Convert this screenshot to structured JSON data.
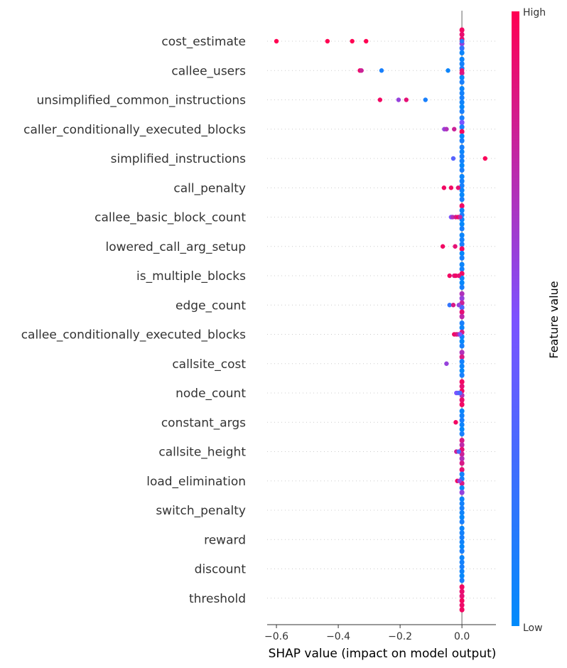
{
  "chart_data": {
    "type": "scatter",
    "subtype": "shap-beeswarm",
    "title": "",
    "xlabel": "SHAP value (impact on model output)",
    "xlim": [
      -0.63,
      0.11
    ],
    "xticks": [
      -0.6,
      -0.4,
      -0.2,
      0.0
    ],
    "xtick_labels": [
      "−0.6",
      "−0.4",
      "−0.2",
      "0.0"
    ],
    "colorbar": {
      "label": "Feature value",
      "high": "High",
      "low": "Low",
      "high_color": "#ff0052",
      "low_color": "#008bfb"
    },
    "features": [
      {
        "name": "cost_estimate",
        "dense": [
          [
            0,
            0.95
          ],
          [
            0,
            0.92
          ],
          [
            0,
            0.9
          ],
          [
            0,
            0.6
          ],
          [
            0,
            0.2
          ],
          [
            0,
            0.05
          ]
        ],
        "points": [
          [
            -0.6,
            1.0
          ],
          [
            -0.435,
            1.0
          ],
          [
            -0.355,
            1.0
          ],
          [
            -0.31,
            1.0
          ],
          [
            0,
            0.98
          ],
          [
            0,
            0.15
          ]
        ]
      },
      {
        "name": "callee_users",
        "dense": [
          [
            0,
            0.05
          ],
          [
            0,
            0.08
          ],
          [
            0,
            0.1
          ],
          [
            0,
            0.85
          ],
          [
            0,
            0.03
          ],
          [
            0,
            0.1
          ]
        ],
        "points": [
          [
            -0.33,
            0.95
          ],
          [
            -0.325,
            0.8
          ],
          [
            -0.26,
            0.1
          ],
          [
            -0.045,
            0.05
          ],
          [
            0,
            0.9
          ]
        ]
      },
      {
        "name": "unsimplified_common_instructions",
        "dense": [
          [
            0,
            0.05
          ],
          [
            0,
            0.08
          ],
          [
            0,
            0.1
          ],
          [
            0,
            0.06
          ],
          [
            0,
            0.03
          ],
          [
            0,
            0.1
          ]
        ],
        "points": [
          [
            -0.265,
            0.95
          ],
          [
            -0.205,
            0.6
          ],
          [
            -0.18,
            0.9
          ],
          [
            -0.118,
            0.1
          ]
        ]
      },
      {
        "name": "caller_conditionally_executed_blocks",
        "dense": [
          [
            0,
            0.1
          ],
          [
            0,
            0.5
          ],
          [
            0,
            0.1
          ],
          [
            0,
            0.95
          ],
          [
            0,
            0.03
          ],
          [
            0,
            0.1
          ]
        ],
        "points": [
          [
            -0.057,
            0.6
          ],
          [
            -0.05,
            0.7
          ],
          [
            -0.025,
            0.8
          ]
        ]
      },
      {
        "name": "simplified_instructions",
        "dense": [
          [
            0,
            0.1
          ],
          [
            0,
            0.05
          ],
          [
            0,
            0.1
          ],
          [
            0,
            0.08
          ],
          [
            0,
            0.03
          ],
          [
            0,
            0.1
          ]
        ],
        "points": [
          [
            -0.028,
            0.35
          ],
          [
            0.075,
            0.98
          ]
        ]
      },
      {
        "name": "call_penalty",
        "dense": [
          [
            0,
            0.05
          ],
          [
            0,
            0.08
          ],
          [
            0,
            0.1
          ],
          [
            0,
            0.06
          ],
          [
            0,
            0.03
          ],
          [
            0,
            0.1
          ]
        ],
        "points": [
          [
            -0.058,
            0.95
          ],
          [
            -0.035,
            0.95
          ],
          [
            -0.012,
            0.9
          ]
        ]
      },
      {
        "name": "callee_basic_block_count",
        "dense": [
          [
            0,
            0.95
          ],
          [
            0,
            0.05
          ],
          [
            0,
            0.1
          ],
          [
            0,
            0.06
          ],
          [
            0,
            0.03
          ],
          [
            0,
            0.1
          ]
        ],
        "points": [
          [
            -0.035,
            0.5
          ],
          [
            -0.03,
            0.7
          ],
          [
            -0.02,
            0.85
          ],
          [
            -0.012,
            0.95
          ],
          [
            -0.006,
            0.75
          ]
        ]
      },
      {
        "name": "lowered_call_arg_setup",
        "dense": [
          [
            0,
            0.05
          ],
          [
            0,
            0.08
          ],
          [
            0,
            0.1
          ],
          [
            0,
            0.95
          ],
          [
            0,
            0.03
          ],
          [
            0,
            0.1
          ]
        ],
        "points": [
          [
            -0.062,
            0.95
          ],
          [
            -0.022,
            0.9
          ]
        ]
      },
      {
        "name": "is_multiple_blocks",
        "dense": [
          [
            0,
            0.05
          ],
          [
            0,
            0.08
          ],
          [
            0,
            0.95
          ],
          [
            0,
            0.06
          ],
          [
            0,
            0.03
          ],
          [
            0,
            0.1
          ]
        ],
        "points": [
          [
            -0.04,
            0.95
          ],
          [
            -0.025,
            0.85
          ],
          [
            -0.02,
            0.95
          ],
          [
            -0.01,
            0.9
          ]
        ]
      },
      {
        "name": "edge_count",
        "dense": [
          [
            0,
            0.7
          ],
          [
            0,
            0.6
          ],
          [
            0,
            0.8
          ],
          [
            0,
            0.3
          ],
          [
            0,
            0.9
          ],
          [
            0,
            0.75
          ]
        ],
        "points": [
          [
            -0.04,
            0.2
          ],
          [
            -0.028,
            0.85
          ],
          [
            -0.01,
            0.6
          ]
        ]
      },
      {
        "name": "callee_conditionally_executed_blocks",
        "dense": [
          [
            0,
            0.1
          ],
          [
            0,
            0.05
          ],
          [
            0,
            0.85
          ],
          [
            0,
            0.06
          ],
          [
            0,
            0.03
          ],
          [
            0,
            0.1
          ]
        ],
        "points": [
          [
            -0.025,
            0.95
          ],
          [
            -0.018,
            0.9
          ],
          [
            -0.012,
            0.8
          ],
          [
            -0.006,
            0.5
          ]
        ]
      },
      {
        "name": "callsite_cost",
        "dense": [
          [
            0,
            0.7
          ],
          [
            0,
            0.85
          ],
          [
            0,
            0.08
          ],
          [
            0,
            0.06
          ],
          [
            0,
            0.03
          ],
          [
            0,
            0.1
          ]
        ],
        "points": [
          [
            -0.05,
            0.6
          ]
        ]
      },
      {
        "name": "node_count",
        "dense": [
          [
            0,
            0.95
          ],
          [
            0,
            0.9
          ],
          [
            0,
            0.95
          ],
          [
            0,
            0.7
          ],
          [
            0,
            0.92
          ],
          [
            0,
            0.95
          ]
        ],
        "points": [
          [
            -0.018,
            0.5
          ],
          [
            -0.012,
            0.4
          ],
          [
            -0.006,
            0.3
          ]
        ]
      },
      {
        "name": "constant_args",
        "dense": [
          [
            0,
            0.05
          ],
          [
            0,
            0.08
          ],
          [
            0,
            0.1
          ],
          [
            0,
            0.06
          ],
          [
            0,
            0.03
          ],
          [
            0,
            0.1
          ]
        ],
        "points": [
          [
            -0.02,
            0.95
          ]
        ]
      },
      {
        "name": "callsite_height",
        "dense": [
          [
            0,
            0.85
          ],
          [
            0,
            0.75
          ],
          [
            0,
            0.9
          ],
          [
            0,
            0.8
          ],
          [
            0,
            0.7
          ],
          [
            0,
            0.85
          ]
        ],
        "points": [
          [
            -0.018,
            0.8
          ],
          [
            -0.01,
            0.3
          ]
        ]
      },
      {
        "name": "load_elimination",
        "dense": [
          [
            0,
            0.9
          ],
          [
            0,
            0.08
          ],
          [
            0,
            0.1
          ],
          [
            0,
            0.85
          ],
          [
            0,
            0.03
          ],
          [
            0,
            0.6
          ]
        ],
        "points": [
          [
            -0.015,
            0.95
          ],
          [
            -0.008,
            0.6
          ]
        ]
      },
      {
        "name": "switch_penalty",
        "dense": [
          [
            0,
            0.05
          ],
          [
            0,
            0.08
          ],
          [
            0,
            0.1
          ],
          [
            0,
            0.06
          ],
          [
            0,
            0.03
          ],
          [
            0,
            0.1
          ]
        ],
        "points": []
      },
      {
        "name": "reward",
        "dense": [
          [
            0,
            0.05
          ],
          [
            0,
            0.08
          ],
          [
            0,
            0.1
          ],
          [
            0,
            0.06
          ],
          [
            0,
            0.03
          ],
          [
            0,
            0.1
          ]
        ],
        "points": []
      },
      {
        "name": "discount",
        "dense": [
          [
            0,
            0.05
          ],
          [
            0,
            0.08
          ],
          [
            0,
            0.1
          ],
          [
            0,
            0.06
          ],
          [
            0,
            0.03
          ],
          [
            0,
            0.1
          ]
        ],
        "points": []
      },
      {
        "name": "threshold",
        "dense": [
          [
            0,
            0.95
          ],
          [
            0,
            0.92
          ],
          [
            0,
            0.9
          ],
          [
            0,
            0.96
          ],
          [
            0,
            0.93
          ],
          [
            0,
            0.95
          ]
        ],
        "points": []
      }
    ]
  }
}
